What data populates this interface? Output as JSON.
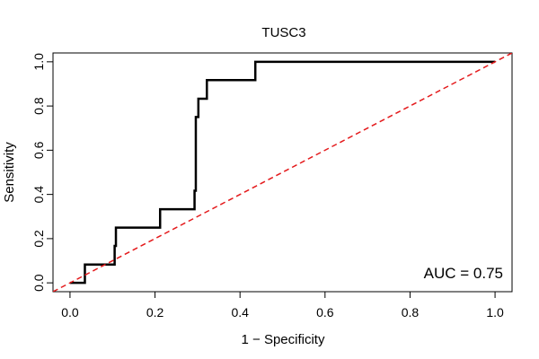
{
  "chart_data": {
    "type": "line",
    "title": "TUSC3",
    "xlabel": "1 − Specificity",
    "ylabel": "Sensitivity",
    "xlim": [
      -0.04,
      1.04
    ],
    "ylim": [
      -0.04,
      1.04
    ],
    "xticks": [
      0.0,
      0.2,
      0.4,
      0.6,
      0.8,
      1.0
    ],
    "xtick_labels": [
      "0.0",
      "0.2",
      "0.4",
      "0.6",
      "0.8",
      "1.0"
    ],
    "yticks": [
      0.0,
      0.2,
      0.4,
      0.6,
      0.8,
      1.0
    ],
    "ytick_labels": [
      "0.0",
      "0.2",
      "0.4",
      "0.6",
      "0.8",
      "1.0"
    ],
    "grid": false,
    "annotation": "AUC = 0.75",
    "series": [
      {
        "color": "#000000",
        "style": "solid-step",
        "x": [
          0.0,
          0.035,
          0.035,
          0.105,
          0.105,
          0.108,
          0.108,
          0.212,
          0.212,
          0.293,
          0.293,
          0.296,
          0.296,
          0.302,
          0.302,
          0.322,
          0.322,
          0.436,
          0.436,
          1.0
        ],
        "y": [
          0.0,
          0.0,
          0.083,
          0.083,
          0.167,
          0.167,
          0.25,
          0.25,
          0.333,
          0.333,
          0.417,
          0.417,
          0.75,
          0.75,
          0.833,
          0.833,
          0.917,
          0.917,
          1.0,
          1.0
        ]
      },
      {
        "color": "#e41a1c",
        "style": "dashed",
        "x": [
          -0.04,
          1.04
        ],
        "y": [
          -0.04,
          1.04
        ]
      }
    ]
  }
}
